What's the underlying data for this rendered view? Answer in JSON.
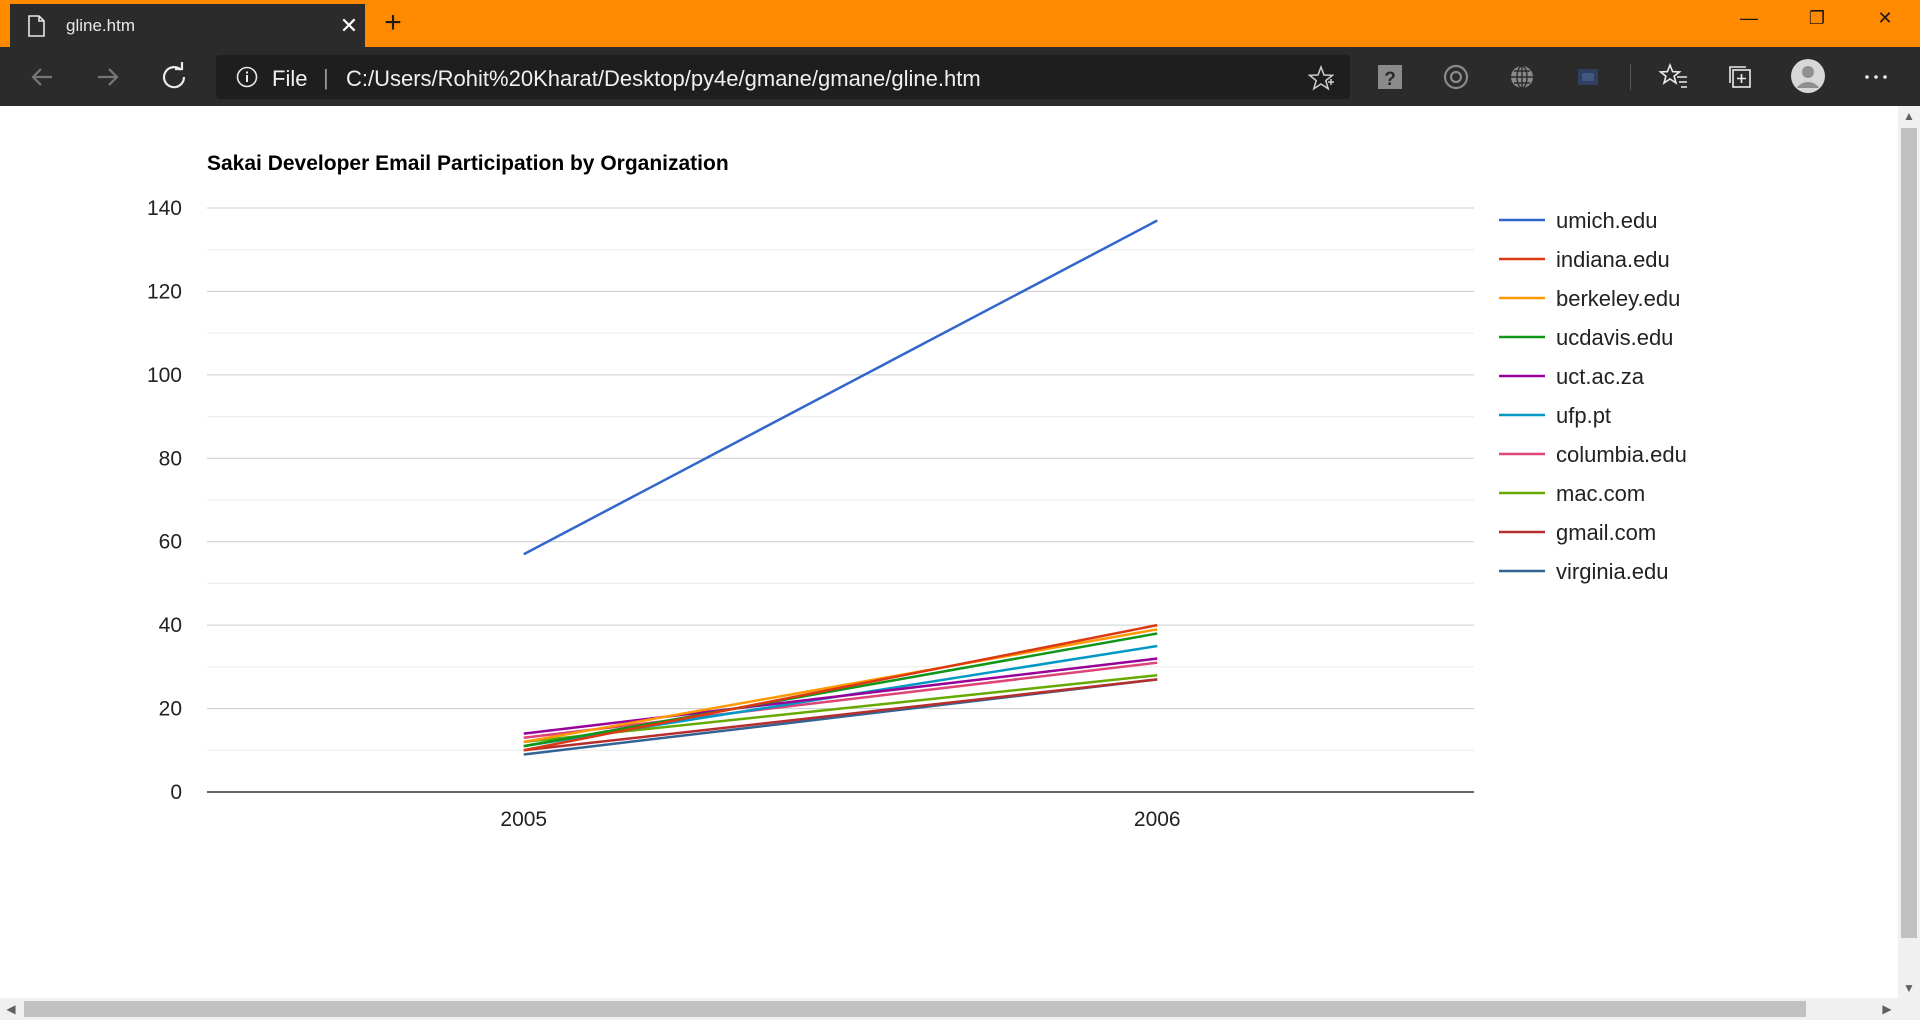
{
  "browser": {
    "tab": {
      "title": "gline.htm",
      "close_label": "✕",
      "icon": "page-icon"
    },
    "new_tab_label": "+",
    "window": {
      "minimize": "—",
      "restore": "❐",
      "close": "✕"
    },
    "address": {
      "info_icon": "info-icon",
      "scheme_label": "File",
      "separator": "|",
      "url": "C:/Users/Rohit%20Kharat/Desktop/py4e/gmane/gmane/gline.htm"
    },
    "toolbar_icons": [
      "back-icon",
      "forward-icon",
      "refresh-icon",
      "star-icon",
      "help-extension-icon",
      "extension-icon",
      "globe-extension-icon",
      "extension-badge-icon",
      "favorites-icon",
      "collections-icon",
      "profile-avatar",
      "more-icon"
    ]
  },
  "colors": {
    "tabstrip": "#ff8a00",
    "toolbar": "#2b2b2b"
  },
  "chart_data": {
    "type": "line",
    "title": "Sakai Developer Email Participation by Organization",
    "categories": [
      "2005",
      "2006"
    ],
    "y_ticks": [
      "0",
      "20",
      "40",
      "60",
      "80",
      "100",
      "120",
      "140"
    ],
    "ylim": [
      0,
      140
    ],
    "grid": true,
    "legend_position": "right",
    "series": [
      {
        "name": "umich.edu",
        "color": "#3366cc",
        "values": [
          57,
          137
        ]
      },
      {
        "name": "indiana.edu",
        "color": "#dc3912",
        "values": [
          10,
          40
        ]
      },
      {
        "name": "berkeley.edu",
        "color": "#ff9900",
        "values": [
          12,
          39
        ]
      },
      {
        "name": "ucdavis.edu",
        "color": "#109618",
        "values": [
          11,
          38
        ]
      },
      {
        "name": "uct.ac.za",
        "color": "#990099",
        "values": [
          14,
          32
        ]
      },
      {
        "name": "ufp.pt",
        "color": "#0099c6",
        "values": [
          11,
          35
        ]
      },
      {
        "name": "columbia.edu",
        "color": "#dd4477",
        "values": [
          13,
          31
        ]
      },
      {
        "name": "mac.com",
        "color": "#66aa00",
        "values": [
          12,
          28
        ]
      },
      {
        "name": "gmail.com",
        "color": "#b82e2e",
        "values": [
          10,
          27
        ]
      },
      {
        "name": "virginia.edu",
        "color": "#316395",
        "values": [
          9,
          27
        ]
      }
    ]
  }
}
